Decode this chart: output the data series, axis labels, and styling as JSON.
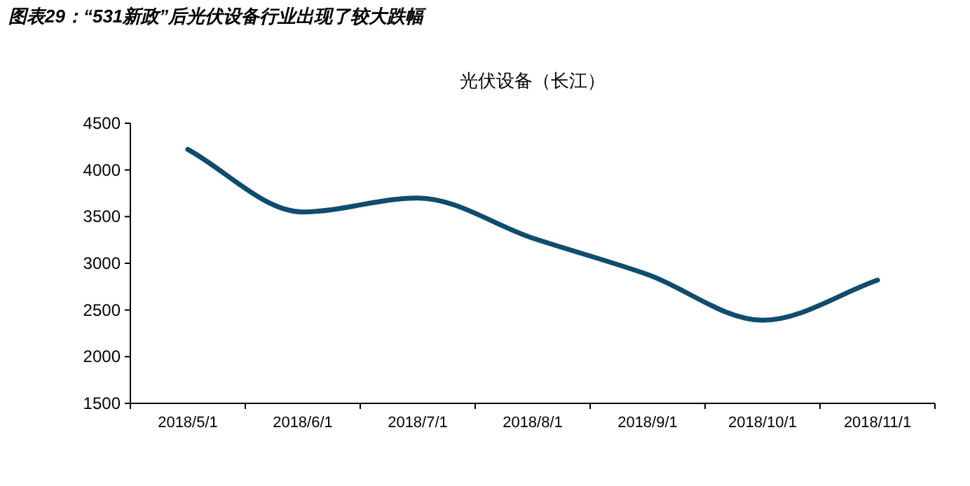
{
  "chart_data": {
    "type": "line",
    "title": "图表29：“531新政”后光伏设备行业出现了较大跌幅",
    "subtitle": "光伏设备（长江）",
    "categories": [
      "2018/5/1",
      "2018/6/1",
      "2018/7/1",
      "2018/8/1",
      "2018/9/1",
      "2018/10/1",
      "2018/11/1"
    ],
    "series": [
      {
        "color": "#0f4c6e",
        "values": [
          4220,
          3550,
          3700,
          3270,
          2880,
          2390,
          2820
        ]
      }
    ],
    "ylim": [
      1500,
      4500
    ],
    "yticks": [
      1500,
      2000,
      2500,
      3000,
      3500,
      4000,
      4500
    ],
    "grid": false,
    "marker": "none",
    "line_style": "solid"
  }
}
